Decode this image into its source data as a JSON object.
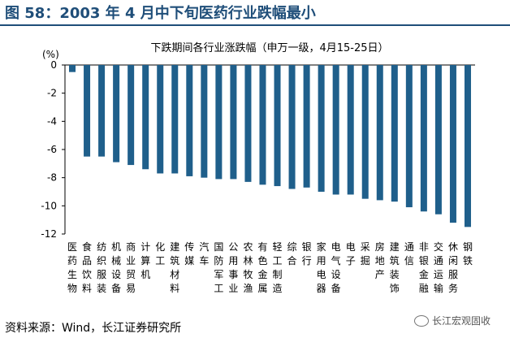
{
  "figure_title": "图 58：2003 年 4 月中下旬医药行业跌幅最小",
  "source": "资料来源：Wind，长江证券研究所",
  "watermark": "长江宏观固收",
  "colors": {
    "bar": "#1f5f8b",
    "title": "#1f4e79"
  },
  "chart_data": {
    "type": "bar",
    "title": "下跌期间各行业涨跌幅（申万一级，4月15-25日）",
    "unit_label": "(%)",
    "ylim": [
      -12,
      0
    ],
    "yticks": [
      0,
      -2,
      -4,
      -6,
      -8,
      -10,
      -12
    ],
    "grid": false,
    "categories": [
      "医药生物",
      "食品饮料",
      "纺织服装",
      "机械设备",
      "商业贸易",
      "计算机",
      "化工",
      "建筑材料",
      "传媒",
      "汽车",
      "国防军工",
      "公用事业",
      "农林牧渔",
      "有色金属",
      "轻工制造",
      "综合",
      "银行",
      "家用电器",
      "电气设备",
      "电子",
      "采掘",
      "房地产",
      "建筑装饰",
      "通信",
      "非银金融",
      "交通运输",
      "休闲服务",
      "钢铁"
    ],
    "values": [
      -0.5,
      -6.5,
      -6.5,
      -6.9,
      -7.1,
      -7.4,
      -7.7,
      -7.7,
      -7.9,
      -8.0,
      -8.1,
      -8.1,
      -8.3,
      -8.5,
      -8.6,
      -8.8,
      -8.7,
      -9.0,
      -9.2,
      -9.2,
      -9.5,
      -9.6,
      -9.7,
      -10.1,
      -10.4,
      -10.6,
      -11.2,
      -11.5
    ]
  }
}
